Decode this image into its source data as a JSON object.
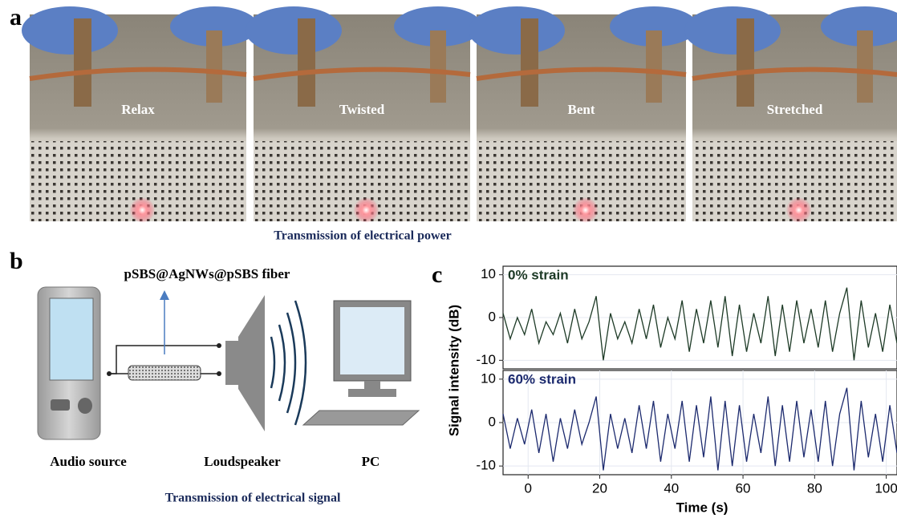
{
  "panel_labels": [
    "a",
    "b",
    "c"
  ],
  "panel_a": {
    "photos": [
      "Relax",
      "Twisted",
      "Bent",
      "Stretched"
    ],
    "caption": "Transmission of electrical power"
  },
  "panel_b": {
    "fiber_label": "pSBS@AgNWs@pSBS fiber",
    "devices": [
      "Audio source",
      "Loudspeaker",
      "PC"
    ],
    "caption": "Transmission of electrical signal"
  },
  "chart_data": [
    {
      "type": "line",
      "ylabel": "Signal intensity (dB)",
      "annotation": "0% strain",
      "color": "#1d3a26",
      "x": [
        -7,
        -5,
        -3,
        -1,
        1,
        3,
        5,
        7,
        9,
        11,
        13,
        15,
        17,
        19,
        21,
        23,
        25,
        27,
        29,
        31,
        33,
        35,
        37,
        39,
        41,
        43,
        45,
        47,
        49,
        51,
        53,
        55,
        57,
        59,
        61,
        63,
        65,
        67,
        69,
        71,
        73,
        75,
        77,
        79,
        81,
        83,
        85,
        87,
        89,
        91,
        93,
        95,
        97,
        99,
        101,
        103
      ],
      "values": [
        1,
        -5,
        0,
        -4,
        2,
        -6,
        -1,
        -4,
        1,
        -6,
        2,
        -5,
        -1,
        5,
        -10,
        1,
        -5,
        -1,
        -6,
        2,
        -5,
        3,
        -7,
        0,
        -5,
        4,
        -8,
        2,
        -6,
        4,
        -7,
        5,
        -9,
        3,
        -8,
        1,
        -6,
        5,
        -9,
        3,
        -8,
        4,
        -6,
        2,
        -7,
        4,
        -8,
        1,
        7,
        -10,
        4,
        -7,
        1,
        -8,
        3,
        -6
      ],
      "xlim": [
        -7,
        103
      ],
      "ylim": [
        -12,
        12
      ],
      "yticks": [
        -10,
        0,
        10
      ],
      "grid": true
    },
    {
      "type": "line",
      "xlabel": "Time (s)",
      "annotation": "60% strain",
      "color": "#1c2a6e",
      "x": [
        -7,
        -5,
        -3,
        -1,
        1,
        3,
        5,
        7,
        9,
        11,
        13,
        15,
        17,
        19,
        21,
        23,
        25,
        27,
        29,
        31,
        33,
        35,
        37,
        39,
        41,
        43,
        45,
        47,
        49,
        51,
        53,
        55,
        57,
        59,
        61,
        63,
        65,
        67,
        69,
        71,
        73,
        75,
        77,
        79,
        81,
        83,
        85,
        87,
        89,
        91,
        93,
        95,
        97,
        99,
        101,
        103
      ],
      "values": [
        2,
        -6,
        1,
        -5,
        3,
        -7,
        2,
        -9,
        1,
        -6,
        3,
        -5,
        0,
        6,
        -11,
        2,
        -6,
        1,
        -7,
        4,
        -6,
        5,
        -9,
        2,
        -6,
        5,
        -9,
        4,
        -8,
        6,
        -11,
        5,
        -10,
        4,
        -9,
        2,
        -7,
        6,
        -10,
        4,
        -9,
        5,
        -8,
        3,
        -9,
        5,
        -10,
        2,
        8,
        -11,
        5,
        -8,
        2,
        -9,
        4,
        -7
      ],
      "xlim": [
        -7,
        103
      ],
      "ylim": [
        -12,
        12
      ],
      "yticks": [
        -10,
        0,
        10
      ],
      "xticks": [
        0,
        20,
        40,
        60,
        80,
        100
      ],
      "grid": true
    }
  ]
}
